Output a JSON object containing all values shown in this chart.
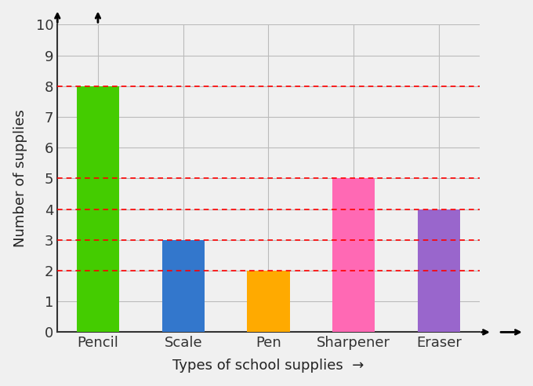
{
  "categories": [
    "Pencil",
    "Scale",
    "Pen",
    "Sharpener",
    "Eraser"
  ],
  "values": [
    8,
    3,
    2,
    5,
    4
  ],
  "bar_colors": [
    "#44CC00",
    "#3377CC",
    "#FFAA00",
    "#FF69B4",
    "#9966CC"
  ],
  "title": "",
  "xlabel": "Types of school supplies",
  "ylabel": "Number of supplies",
  "ylim": [
    0,
    10
  ],
  "yticks": [
    0,
    1,
    2,
    3,
    4,
    5,
    6,
    7,
    8,
    9,
    10
  ],
  "dashed_lines": [
    8,
    5,
    4,
    3,
    2
  ],
  "background_color": "#f0f0f0",
  "grid_color": "#bbbbbb",
  "label_fontsize": 13,
  "tick_fontsize": 13
}
